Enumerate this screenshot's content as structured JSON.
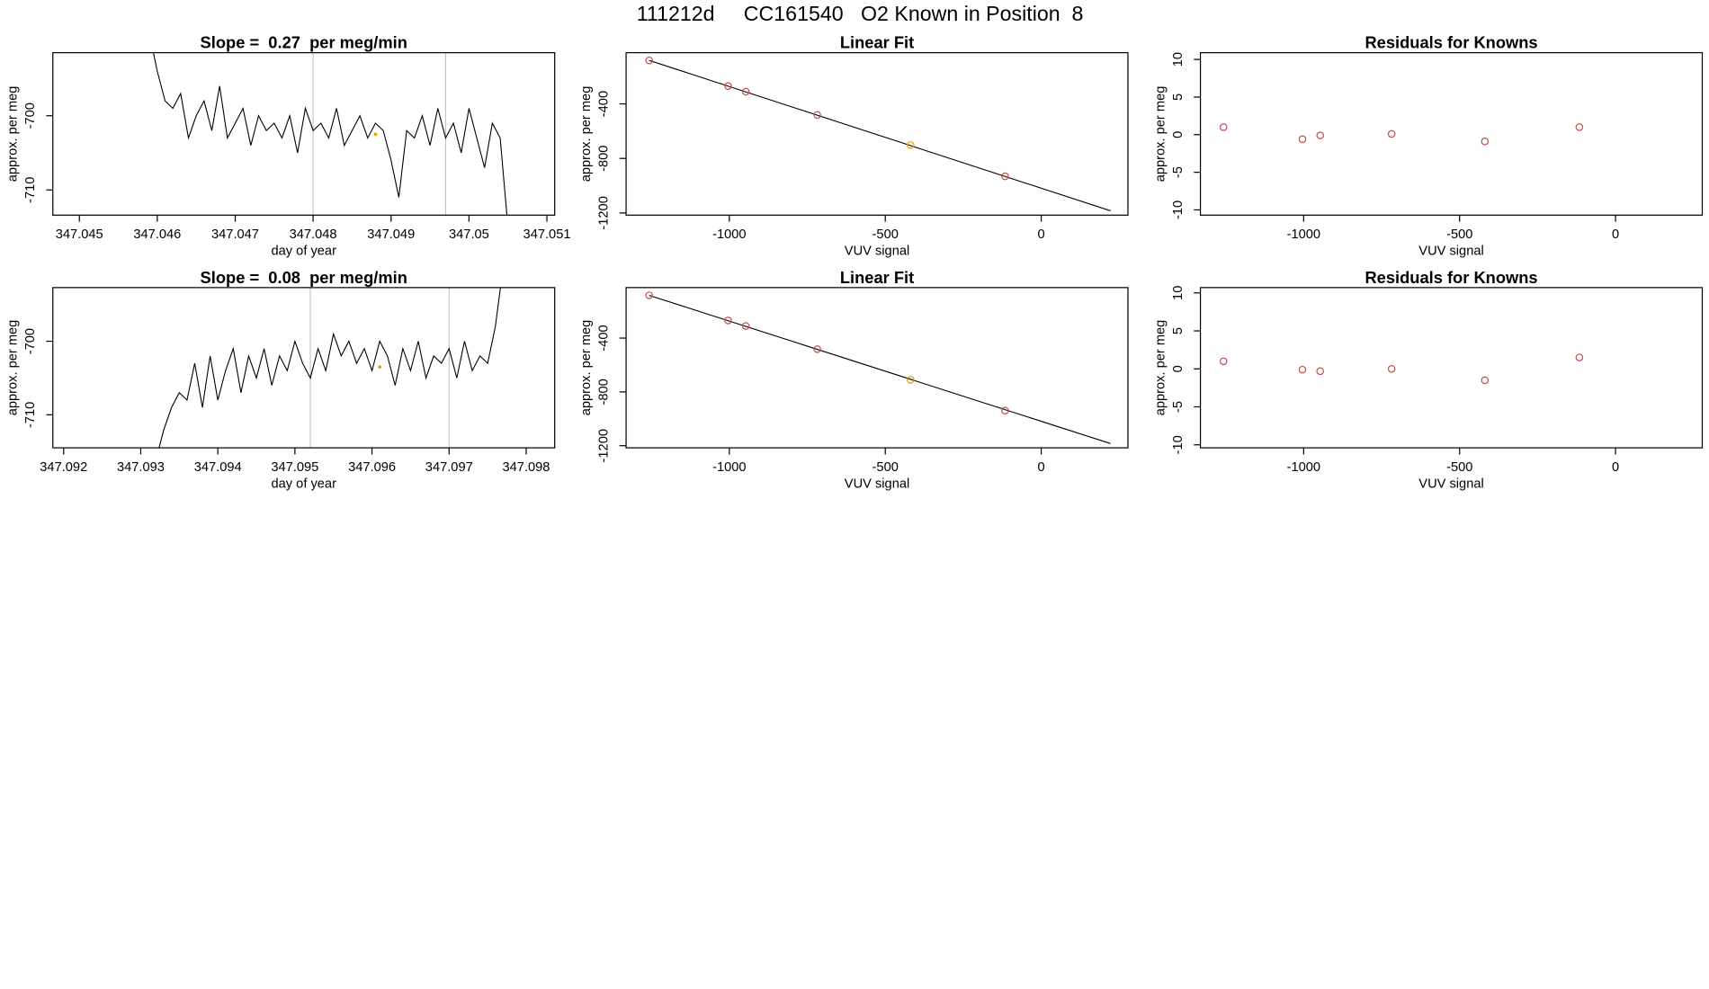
{
  "title": "111212d     CC161540   O2 Known in Position  8",
  "chart_data": [
    {
      "type": "line",
      "title": "Slope =  0.27  per meg/min",
      "xlabel": "day of year",
      "ylabel": "approx. per meg",
      "xlim": [
        347.04466,
        347.0511
      ],
      "xticks": [
        347.045,
        347.046,
        347.047,
        347.048,
        347.049,
        347.05,
        {
          "value": 347.051,
          "label": "347.051"
        }
      ],
      "ylim": [
        -713.4,
        -691.5
      ],
      "yticks": [
        -700,
        -710
      ],
      "color": "#000000",
      "x": [
        347.0459,
        347.046,
        347.0461,
        347.0462,
        347.0463,
        347.0464,
        347.0465,
        347.0466,
        347.0467,
        347.0468,
        347.0469,
        347.047,
        347.0471,
        347.0472,
        347.0473,
        347.0474,
        347.0475,
        347.0476,
        347.0477,
        347.0478,
        347.0479,
        347.048,
        347.0481,
        347.0482,
        347.0483,
        347.0484,
        347.0485,
        347.0486,
        347.0487,
        347.0488,
        347.0489,
        347.049,
        347.0491,
        347.0492,
        347.0493,
        347.0494,
        347.0495,
        347.0496,
        347.0497,
        347.0498,
        347.0499,
        347.05,
        347.0501,
        347.0502,
        347.0503,
        347.0504,
        347.0505
      ],
      "values": [
        -689,
        -694,
        -698,
        -699,
        -697,
        -703,
        -700,
        -698,
        -702,
        -696,
        -703,
        -701,
        -699,
        -704,
        -700,
        -702,
        -701,
        -703,
        -700,
        -705,
        -699,
        -702,
        -701,
        -703,
        -699,
        -704,
        -702,
        -700,
        -703,
        -701,
        -702,
        -706,
        -711,
        -702,
        -703,
        -700,
        -704,
        -699,
        -703,
        -701,
        -705,
        -699,
        -703,
        -707,
        -701,
        -703,
        -715
      ],
      "vlines": [
        347.048,
        347.0497
      ],
      "highlight": {
        "x": 347.0488,
        "y": -702.5,
        "color": "#e69f00"
      }
    },
    {
      "type": "scatter",
      "title": "Linear Fit",
      "xlabel": "VUV signal",
      "ylabel": "approx. per meg",
      "xlim": [
        -1331,
        278
      ],
      "xticks": [
        -1000,
        -500,
        0
      ],
      "ylim": [
        -1216,
        -24.5
      ],
      "yticks": [
        -400,
        -800,
        -1200
      ],
      "x": [
        -1257,
        -1004,
        -947,
        -718,
        -419,
        -116
      ],
      "values": [
        -81,
        -269,
        -310,
        -481,
        -702,
        -931
      ],
      "colors": [
        "#c0504d",
        "#c0504d",
        "#c0504d",
        "#c0504d",
        "#e69f00",
        "#c0504d"
      ],
      "fit": {
        "x": [
          -1257,
          222
        ],
        "values": [
          -81,
          -1184
        ],
        "color": "#000000"
      }
    },
    {
      "type": "scatter",
      "title": "Residuals for Knowns",
      "xlabel": "VUV signal",
      "ylabel": "approx. per meg",
      "xlim": [
        -1331,
        278
      ],
      "xticks": [
        -1000,
        -500,
        0
      ],
      "ylim": [
        -10.7,
        10.9
      ],
      "yticks": [
        10,
        5,
        0,
        -5,
        -10
      ],
      "x": [
        -1257,
        -1004,
        -947,
        -718,
        -419,
        -116
      ],
      "values": [
        1.0,
        -0.6,
        -0.1,
        0.1,
        -0.9,
        1.0
      ],
      "colors": [
        "#c0504d",
        "#c0504d",
        "#c0504d",
        "#c0504d",
        "#c0504d",
        "#c0504d"
      ]
    },
    {
      "type": "line",
      "title": "Slope =  0.08  per meg/min",
      "xlabel": "day of year",
      "ylabel": "approx. per meg",
      "xlim": [
        347.09186,
        347.09837
      ],
      "xticks": [
        347.092,
        347.093,
        347.094,
        347.095,
        347.096,
        347.097,
        347.098
      ],
      "ylim": [
        -714.5,
        -692.7
      ],
      "yticks": [
        -700,
        -710
      ],
      "color": "#000000",
      "x": [
        347.0932,
        347.0933,
        347.0934,
        347.0935,
        347.0936,
        347.0937,
        347.0938,
        347.0939,
        347.094,
        347.0941,
        347.0942,
        347.0943,
        347.0944,
        347.0945,
        347.0946,
        347.0947,
        347.0948,
        347.0949,
        347.095,
        347.0951,
        347.0952,
        347.0953,
        347.0954,
        347.0955,
        347.0956,
        347.0957,
        347.0958,
        347.0959,
        347.096,
        347.0961,
        347.0962,
        347.0963,
        347.0964,
        347.0965,
        347.0966,
        347.0967,
        347.0968,
        347.0969,
        347.097,
        347.0971,
        347.0972,
        347.0973,
        347.0974,
        347.0975,
        347.0976,
        347.0977
      ],
      "values": [
        -716,
        -712,
        -709,
        -707,
        -708,
        -703,
        -709,
        -702,
        -708,
        -704,
        -701,
        -707,
        -702,
        -705,
        -701,
        -706,
        -702,
        -704,
        -700,
        -703,
        -705,
        -701,
        -704,
        -699,
        -702,
        -700,
        -703,
        -701,
        -704,
        -700,
        -702,
        -706,
        -701,
        -704,
        -700,
        -705,
        -702,
        -703,
        -701,
        -705,
        -700,
        -704,
        -702,
        -703,
        -698,
        -690
      ],
      "vlines": [
        347.0952,
        347.097
      ],
      "highlight": {
        "x": 347.0961,
        "y": -703.5,
        "color": "#e69f00"
      }
    },
    {
      "type": "scatter",
      "title": "Linear Fit",
      "xlabel": "VUV signal",
      "ylabel": "approx. per meg",
      "xlim": [
        -1331,
        278
      ],
      "xticks": [
        -1000,
        -500,
        0
      ],
      "ylim": [
        -1216,
        -24.5
      ],
      "yticks": [
        -400,
        -800,
        -1200
      ],
      "x": [
        -1257,
        -1004,
        -947,
        -718,
        -419,
        -116
      ],
      "values": [
        -82,
        -269,
        -310,
        -482,
        -710,
        -939
      ],
      "colors": [
        "#c0504d",
        "#c0504d",
        "#c0504d",
        "#c0504d",
        "#e69f00",
        "#c0504d"
      ],
      "fit": {
        "x": [
          -1257,
          222
        ],
        "values": [
          -82,
          -1184
        ],
        "color": "#000000"
      }
    },
    {
      "type": "scatter",
      "title": "Residuals for Knowns",
      "xlabel": "VUV signal",
      "ylabel": "approx. per meg",
      "xlim": [
        -1331,
        278
      ],
      "xticks": [
        -1000,
        -500,
        0
      ],
      "ylim": [
        -10.4,
        10.7
      ],
      "yticks": [
        10,
        5,
        0,
        -5,
        -10
      ],
      "x": [
        -1257,
        -1004,
        -947,
        -718,
        -419,
        -116
      ],
      "values": [
        1.0,
        -0.1,
        -0.3,
        0,
        -1.5,
        1.5
      ],
      "colors": [
        "#c0504d",
        "#c0504d",
        "#c0504d",
        "#c0504d",
        "#c0504d",
        "#c0504d"
      ]
    }
  ]
}
